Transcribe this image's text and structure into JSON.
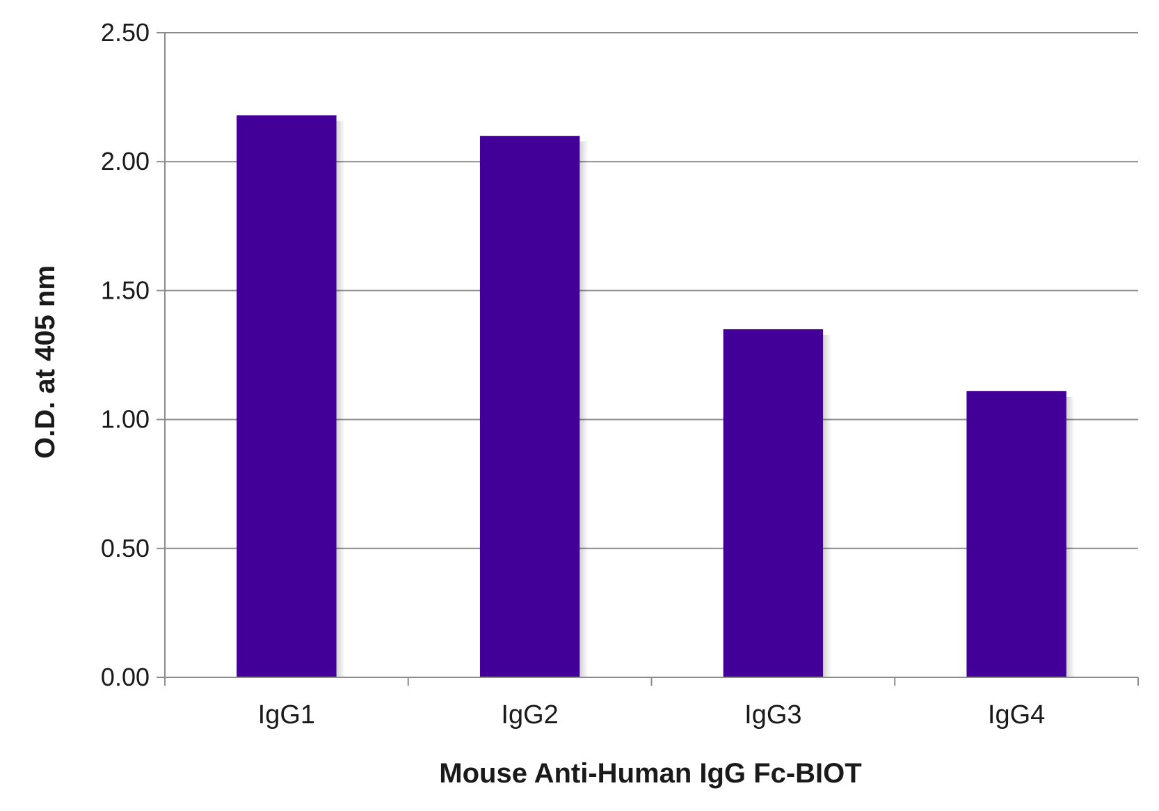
{
  "chart_data": {
    "type": "bar",
    "title": "",
    "xlabel": "Mouse Anti-Human IgG Fc-BIOT",
    "ylabel": "O.D. at 405 nm",
    "categories": [
      "IgG1",
      "IgG2",
      "IgG3",
      "IgG4"
    ],
    "values": [
      2.18,
      2.1,
      1.35,
      1.11
    ],
    "ylim": [
      0,
      2.5
    ],
    "yticks": [
      "0.00",
      "0.50",
      "1.00",
      "1.50",
      "2.00",
      "2.50"
    ],
    "grid": true,
    "legend": "none",
    "bar_color": "#420099",
    "gridline_color": "#8c8c8c"
  }
}
